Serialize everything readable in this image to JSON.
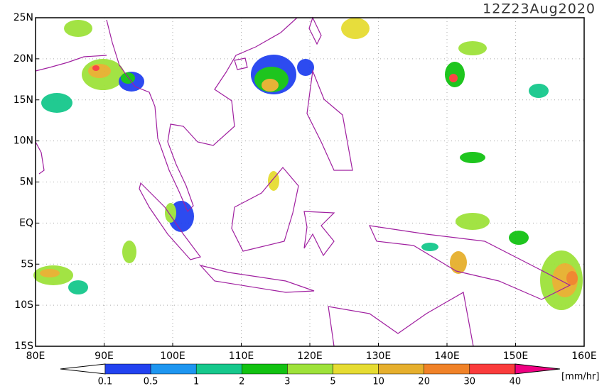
{
  "map": {
    "title": "12Z23Aug2020",
    "xlim": [
      80,
      160
    ],
    "ylim": [
      -15,
      25
    ],
    "xticks": [
      {
        "value": 80,
        "label": "80E"
      },
      {
        "value": 90,
        "label": "90E"
      },
      {
        "value": 100,
        "label": "100E"
      },
      {
        "value": 110,
        "label": "110E"
      },
      {
        "value": 120,
        "label": "120E"
      },
      {
        "value": 130,
        "label": "130E"
      },
      {
        "value": 140,
        "label": "140E"
      },
      {
        "value": 150,
        "label": "150E"
      },
      {
        "value": 160,
        "label": "160E"
      }
    ],
    "yticks": [
      {
        "value": 25,
        "label": "25N"
      },
      {
        "value": 20,
        "label": "20N"
      },
      {
        "value": 15,
        "label": "15N"
      },
      {
        "value": 10,
        "label": "10N"
      },
      {
        "value": 5,
        "label": "5N"
      },
      {
        "value": 0,
        "label": "EQ"
      },
      {
        "value": -5,
        "label": "5S"
      },
      {
        "value": -10,
        "label": "10S"
      },
      {
        "value": -15,
        "label": "15S"
      }
    ],
    "colorbar": {
      "levels": [
        0.1,
        0.5,
        1,
        2,
        3,
        5,
        10,
        20,
        30,
        40
      ],
      "colors": [
        "#ffffff",
        "#2242f0",
        "#1e96f0",
        "#16c88c",
        "#12c212",
        "#9ee23a",
        "#e6dc32",
        "#e6af2d",
        "#f08228",
        "#fa3c3c",
        "#f00082"
      ],
      "unit": "[mm/hr]"
    }
  }
}
